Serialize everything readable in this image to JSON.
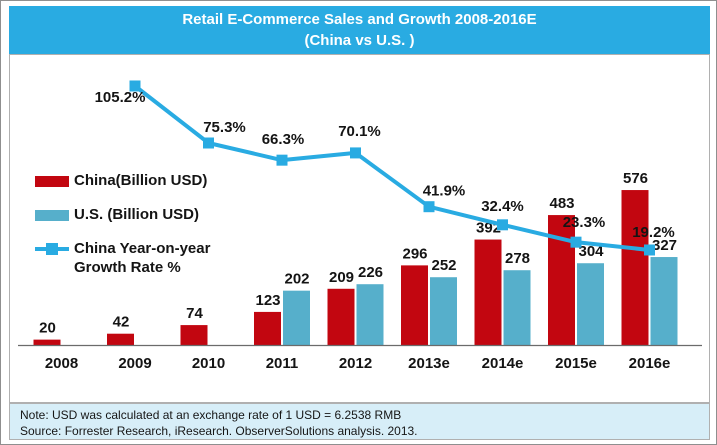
{
  "title": {
    "line1": "Retail E-Commerce Sales and Growth 2008-2016E",
    "line2": "(China vs U.S.  )"
  },
  "legend": {
    "items": [
      {
        "label": "China(Billion USD)",
        "marker": "bar-swatch",
        "color": "#C20610"
      },
      {
        "label": "U.S. (Billion USD)",
        "marker": "bar-swatch",
        "color": "#56AFCB"
      },
      {
        "label": "China Year-on-year Growth Rate %",
        "marker": "line-square-swatch",
        "color": "#29ABE2"
      }
    ]
  },
  "chart_data": {
    "type": "combo-bar-line",
    "title": "Retail E-Commerce Sales and Growth 2008-2016E (China vs U.S.)",
    "categories": [
      "2008",
      "2009",
      "2010",
      "2011",
      "2012",
      "2013e",
      "2014e",
      "2015e",
      "2016e"
    ],
    "series": [
      {
        "name": "China(Billion USD)",
        "type": "bar",
        "color": "#C20610",
        "values": [
          20,
          42,
          74,
          123,
          209,
          296,
          392,
          483,
          576
        ]
      },
      {
        "name": "U.S. (Billion USD)",
        "type": "bar",
        "color": "#56AFCB",
        "values": [
          null,
          null,
          null,
          202,
          226,
          252,
          278,
          304,
          327
        ]
      },
      {
        "name": "China Year-on-year Growth Rate %",
        "type": "line",
        "color": "#29ABE2",
        "unit": "%",
        "values": [
          null,
          105.2,
          75.3,
          66.3,
          70.1,
          41.9,
          32.4,
          23.3,
          19.2
        ]
      }
    ],
    "value_labels": true,
    "legend_position": "left",
    "grid": false,
    "y_axis_visible": false,
    "x_axis_line": true
  },
  "note": {
    "line1": "Note: USD was calculated at an exchange rate of 1 USD = 6.2538 RMB",
    "line2": "Source: Forrester Research, iResearch. ObserverSolutions analysis. 2013."
  },
  "colors": {
    "header_bg": "#29ABE2",
    "note_bg": "#D7EEF8",
    "china_bar": "#C20610",
    "us_bar": "#56AFCB",
    "growth_line": "#29ABE2"
  }
}
